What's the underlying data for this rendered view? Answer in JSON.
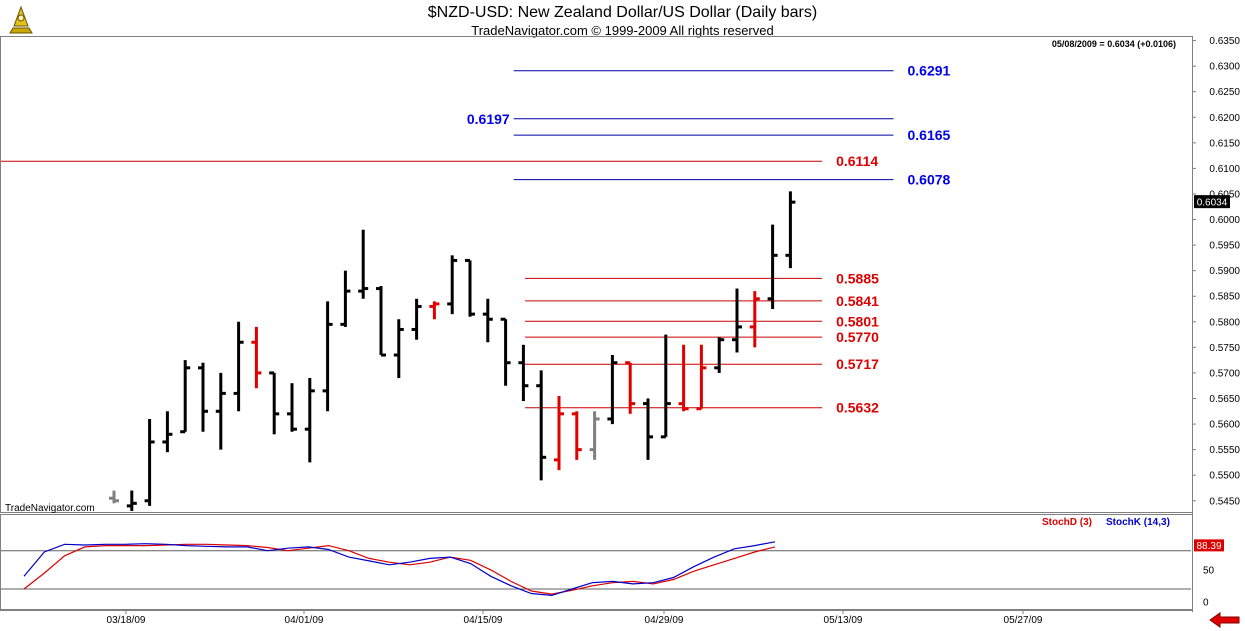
{
  "header": {
    "title": "$NZD-USD:  New Zealand Dollar/US Dollar  (Daily bars)",
    "subtitle": "TradeNavigator.com © 1999-2009 All rights reserved",
    "readout": "05/08/2009 = 0.6034 (+0.0106)",
    "watermark": "TradeNavigator.com"
  },
  "colors": {
    "up_bar": "#000000",
    "down_bar": "#e00000",
    "neutral_bar": "#808080",
    "target_line": "#0000aa",
    "target_label": "#0000ee",
    "support_line": "#cc0000",
    "support_label": "#dd0000",
    "stochd": "#dd0000",
    "stochk": "#0000cc"
  },
  "chart_data": [
    {
      "type": "ohlc",
      "title": "$NZD-USD:  New Zealand Dollar/US Dollar  (Daily bars)",
      "ylim": [
        0.543,
        0.6355
      ],
      "y_ticks": [
        "0.5450",
        "0.5500",
        "0.5550",
        "0.5600",
        "0.5650",
        "0.5700",
        "0.5750",
        "0.5800",
        "0.5850",
        "0.5900",
        "0.5950",
        "0.6000",
        "0.6050",
        "0.6100",
        "0.6150",
        "0.6200",
        "0.6250",
        "0.6300",
        "0.6350"
      ],
      "x_ticks": [
        "03/18/09",
        "04/01/09",
        "04/15/09",
        "04/29/09",
        "05/13/09",
        "05/27/09"
      ],
      "last_price_label": "0.6034",
      "bars": [
        {
          "i": 0,
          "o": 0.5455,
          "h": 0.547,
          "l": 0.5445,
          "c": 0.545,
          "col": "neutral"
        },
        {
          "i": 1,
          "o": 0.544,
          "h": 0.547,
          "l": 0.543,
          "c": 0.5445,
          "col": "up"
        },
        {
          "i": 2,
          "o": 0.545,
          "h": 0.561,
          "l": 0.544,
          "c": 0.5565,
          "col": "up"
        },
        {
          "i": 3,
          "o": 0.5565,
          "h": 0.5625,
          "l": 0.5545,
          "c": 0.558,
          "col": "up"
        },
        {
          "i": 4,
          "o": 0.5585,
          "h": 0.5725,
          "l": 0.5585,
          "c": 0.571,
          "col": "up"
        },
        {
          "i": 5,
          "o": 0.571,
          "h": 0.572,
          "l": 0.5585,
          "c": 0.5625,
          "col": "up"
        },
        {
          "i": 6,
          "o": 0.5625,
          "h": 0.57,
          "l": 0.555,
          "c": 0.566,
          "col": "up"
        },
        {
          "i": 7,
          "o": 0.566,
          "h": 0.58,
          "l": 0.5625,
          "c": 0.576,
          "col": "up"
        },
        {
          "i": 8,
          "o": 0.576,
          "h": 0.579,
          "l": 0.567,
          "c": 0.57,
          "col": "down"
        },
        {
          "i": 9,
          "o": 0.57,
          "h": 0.57,
          "l": 0.558,
          "c": 0.562,
          "col": "up"
        },
        {
          "i": 10,
          "o": 0.562,
          "h": 0.568,
          "l": 0.5585,
          "c": 0.559,
          "col": "up"
        },
        {
          "i": 11,
          "o": 0.559,
          "h": 0.569,
          "l": 0.5525,
          "c": 0.5665,
          "col": "up"
        },
        {
          "i": 12,
          "o": 0.5665,
          "h": 0.584,
          "l": 0.5625,
          "c": 0.5795,
          "col": "up"
        },
        {
          "i": 13,
          "o": 0.5795,
          "h": 0.59,
          "l": 0.579,
          "c": 0.586,
          "col": "up"
        },
        {
          "i": 14,
          "o": 0.586,
          "h": 0.598,
          "l": 0.5845,
          "c": 0.5865,
          "col": "up"
        },
        {
          "i": 15,
          "o": 0.5865,
          "h": 0.587,
          "l": 0.5735,
          "c": 0.5735,
          "col": "up"
        },
        {
          "i": 16,
          "o": 0.5735,
          "h": 0.5805,
          "l": 0.569,
          "c": 0.5785,
          "col": "up"
        },
        {
          "i": 17,
          "o": 0.5785,
          "h": 0.5845,
          "l": 0.5765,
          "c": 0.583,
          "col": "up"
        },
        {
          "i": 18,
          "o": 0.583,
          "h": 0.584,
          "l": 0.5805,
          "c": 0.5835,
          "col": "down"
        },
        {
          "i": 19,
          "o": 0.5835,
          "h": 0.593,
          "l": 0.5815,
          "c": 0.592,
          "col": "up"
        },
        {
          "i": 20,
          "o": 0.592,
          "h": 0.592,
          "l": 0.581,
          "c": 0.5815,
          "col": "up"
        },
        {
          "i": 21,
          "o": 0.5815,
          "h": 0.5845,
          "l": 0.576,
          "c": 0.5805,
          "col": "up"
        },
        {
          "i": 22,
          "o": 0.5805,
          "h": 0.5805,
          "l": 0.5675,
          "c": 0.572,
          "col": "up"
        },
        {
          "i": 23,
          "o": 0.572,
          "h": 0.5755,
          "l": 0.5645,
          "c": 0.5675,
          "col": "up"
        },
        {
          "i": 24,
          "o": 0.5675,
          "h": 0.5705,
          "l": 0.549,
          "c": 0.5535,
          "col": "up"
        },
        {
          "i": 25,
          "o": 0.553,
          "h": 0.5655,
          "l": 0.551,
          "c": 0.562,
          "col": "down"
        },
        {
          "i": 26,
          "o": 0.562,
          "h": 0.5625,
          "l": 0.553,
          "c": 0.555,
          "col": "down"
        },
        {
          "i": 27,
          "o": 0.555,
          "h": 0.5625,
          "l": 0.553,
          "c": 0.561,
          "col": "neutral"
        },
        {
          "i": 28,
          "o": 0.561,
          "h": 0.5735,
          "l": 0.56,
          "c": 0.572,
          "col": "up"
        },
        {
          "i": 29,
          "o": 0.572,
          "h": 0.572,
          "l": 0.562,
          "c": 0.564,
          "col": "down"
        },
        {
          "i": 30,
          "o": 0.564,
          "h": 0.565,
          "l": 0.553,
          "c": 0.5575,
          "col": "up"
        },
        {
          "i": 31,
          "o": 0.5575,
          "h": 0.5775,
          "l": 0.5575,
          "c": 0.564,
          "col": "up"
        },
        {
          "i": 32,
          "o": 0.564,
          "h": 0.5755,
          "l": 0.5625,
          "c": 0.563,
          "col": "down"
        },
        {
          "i": 33,
          "o": 0.563,
          "h": 0.5755,
          "l": 0.563,
          "c": 0.571,
          "col": "down"
        },
        {
          "i": 34,
          "o": 0.571,
          "h": 0.577,
          "l": 0.57,
          "c": 0.5765,
          "col": "up"
        },
        {
          "i": 35,
          "o": 0.5765,
          "h": 0.5865,
          "l": 0.574,
          "c": 0.579,
          "col": "up"
        },
        {
          "i": 36,
          "o": 0.579,
          "h": 0.586,
          "l": 0.575,
          "c": 0.5845,
          "col": "down"
        },
        {
          "i": 37,
          "o": 0.5845,
          "h": 0.599,
          "l": 0.5825,
          "c": 0.593,
          "col": "up"
        },
        {
          "i": 38,
          "o": 0.593,
          "h": 0.6055,
          "l": 0.5905,
          "c": 0.6034,
          "col": "up"
        }
      ],
      "levels": [
        {
          "value": 0.6291,
          "label": "0.6291",
          "kind": "target",
          "from": 0.33,
          "to": 0.75,
          "label_side": "right"
        },
        {
          "value": 0.6197,
          "label": "0.6197",
          "kind": "target",
          "from": 0.33,
          "to": 0.75,
          "label_side": "left"
        },
        {
          "value": 0.6165,
          "label": "0.6165",
          "kind": "target",
          "from": 0.33,
          "to": 0.75,
          "label_side": "right"
        },
        {
          "value": 0.6114,
          "label": "0.6114",
          "kind": "support",
          "from": 0.0,
          "to": 0.69,
          "label_side": "right"
        },
        {
          "value": 0.6078,
          "label": "0.6078",
          "kind": "target",
          "from": 0.33,
          "to": 0.75,
          "label_side": "right"
        },
        {
          "value": 0.5885,
          "label": "0.5885",
          "kind": "support",
          "from": 0.39,
          "to": 0.69,
          "label_side": "right"
        },
        {
          "value": 0.5841,
          "label": "0.5841",
          "kind": "support",
          "from": 0.39,
          "to": 0.69,
          "label_side": "right"
        },
        {
          "value": 0.5801,
          "label": "0.5801",
          "kind": "support",
          "from": 0.39,
          "to": 0.69,
          "label_side": "right"
        },
        {
          "value": 0.577,
          "label": "0.5770",
          "kind": "support",
          "from": 0.39,
          "to": 0.69,
          "label_side": "right"
        },
        {
          "value": 0.5717,
          "label": "0.5717",
          "kind": "support",
          "from": 0.39,
          "to": 0.69,
          "label_side": "right"
        },
        {
          "value": 0.5632,
          "label": "0.5632",
          "kind": "support",
          "from": 0.39,
          "to": 0.69,
          "label_side": "right"
        }
      ]
    },
    {
      "type": "line",
      "ylim": [
        -5,
        125
      ],
      "y_ticks": [
        "0",
        "50"
      ],
      "series": [
        {
          "name": "StochD (3)",
          "values": [
            20,
            45,
            72,
            86,
            88,
            88,
            88,
            89,
            90,
            90,
            89,
            88,
            85,
            80,
            84,
            88,
            80,
            68,
            62,
            58,
            62,
            70,
            65,
            50,
            32,
            17,
            12,
            18,
            25,
            30,
            32,
            28,
            35,
            48,
            58,
            68,
            78,
            86
          ]
        },
        {
          "name": "StochK (14,3)",
          "values": [
            40,
            78,
            90,
            89,
            90,
            90,
            91,
            90,
            88,
            87,
            86,
            86,
            80,
            84,
            86,
            82,
            70,
            64,
            58,
            62,
            68,
            70,
            60,
            40,
            25,
            13,
            10,
            20,
            30,
            32,
            28,
            30,
            38,
            55,
            70,
            83,
            88,
            94
          ]
        }
      ],
      "last_value_label": "88.39",
      "overbought": 80,
      "oversold": 20
    }
  ]
}
